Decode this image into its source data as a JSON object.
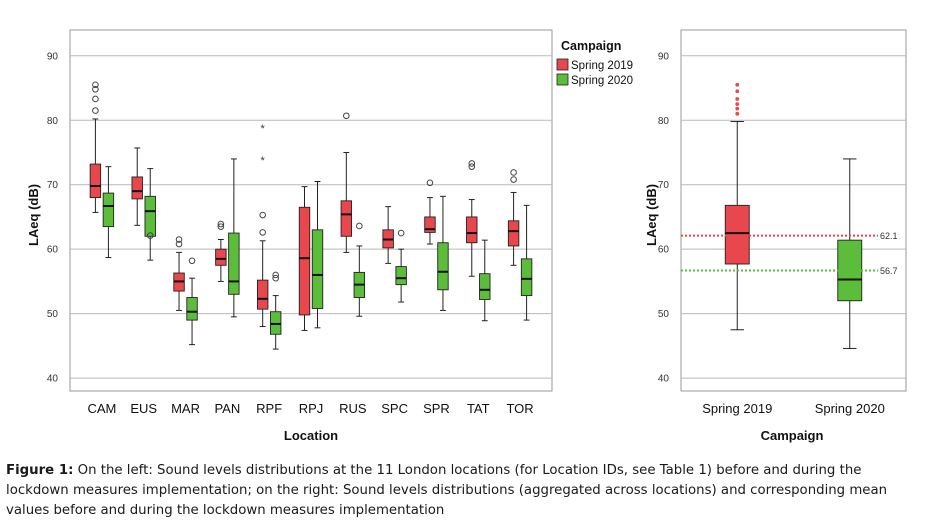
{
  "chart_data": [
    {
      "type": "boxplot",
      "xlabel": "Location",
      "ylabel": "LAeq (dB)",
      "ylim": [
        38,
        94
      ],
      "yticks": [
        40,
        50,
        60,
        70,
        80,
        90
      ],
      "grid": true,
      "legend": {
        "title": "Campaign",
        "position": "top-right"
      },
      "categories": [
        "CAM",
        "EUS",
        "MAR",
        "PAN",
        "RPF",
        "RPJ",
        "RUS",
        "SPC",
        "SPR",
        "TAT",
        "TOR"
      ],
      "series": [
        {
          "name": "Spring 2019",
          "color": "#e8474e",
          "boxes": [
            {
              "category": "CAM",
              "whisker_low": 65.7,
              "q1": 68.0,
              "median": 69.8,
              "q3": 73.2,
              "whisker_high": 80.2,
              "outliers": [
                81.5,
                83.3,
                84.8,
                85.5
              ],
              "extremes": []
            },
            {
              "category": "EUS",
              "whisker_low": 63.7,
              "q1": 67.8,
              "median": 69.0,
              "q3": 71.2,
              "whisker_high": 75.7,
              "outliers": [],
              "extremes": []
            },
            {
              "category": "MAR",
              "whisker_low": 50.5,
              "q1": 53.5,
              "median": 55.0,
              "q3": 56.3,
              "whisker_high": 59.5,
              "outliers": [
                60.8,
                61.5
              ],
              "extremes": []
            },
            {
              "category": "PAN",
              "whisker_low": 55.0,
              "q1": 57.5,
              "median": 58.5,
              "q3": 60.0,
              "whisker_high": 61.5,
              "outliers": [
                63.5,
                63.9
              ],
              "extremes": []
            },
            {
              "category": "RPF",
              "whisker_low": 48.0,
              "q1": 50.7,
              "median": 52.3,
              "q3": 55.2,
              "whisker_high": 61.3,
              "outliers": [
                62.6,
                65.3
              ],
              "extremes": [
                73.8,
                78.8
              ]
            },
            {
              "category": "RPJ",
              "whisker_low": 47.4,
              "q1": 49.8,
              "median": 58.6,
              "q3": 66.5,
              "whisker_high": 69.7,
              "outliers": [],
              "extremes": []
            },
            {
              "category": "RUS",
              "whisker_low": 59.5,
              "q1": 62.0,
              "median": 65.4,
              "q3": 67.5,
              "whisker_high": 75.0,
              "outliers": [
                80.7
              ],
              "extremes": []
            },
            {
              "category": "SPC",
              "whisker_low": 57.8,
              "q1": 60.2,
              "median": 61.5,
              "q3": 63.0,
              "whisker_high": 66.6,
              "outliers": [],
              "extremes": []
            },
            {
              "category": "SPR",
              "whisker_low": 60.8,
              "q1": 62.6,
              "median": 63.1,
              "q3": 65.0,
              "whisker_high": 68.0,
              "outliers": [
                70.3
              ],
              "extremes": []
            },
            {
              "category": "TAT",
              "whisker_low": 55.8,
              "q1": 61.0,
              "median": 62.5,
              "q3": 65.0,
              "whisker_high": 67.7,
              "outliers": [
                72.8,
                73.3
              ],
              "extremes": []
            },
            {
              "category": "TOR",
              "whisker_low": 57.5,
              "q1": 60.5,
              "median": 62.8,
              "q3": 64.4,
              "whisker_high": 68.8,
              "outliers": [
                70.8,
                71.9
              ],
              "extremes": []
            }
          ]
        },
        {
          "name": "Spring 2020",
          "color": "#5cbd3b",
          "boxes": [
            {
              "category": "CAM",
              "whisker_low": 58.7,
              "q1": 63.5,
              "median": 66.7,
              "q3": 68.7,
              "whisker_high": 72.8,
              "outliers": [],
              "extremes": []
            },
            {
              "category": "EUS",
              "whisker_low": 58.3,
              "q1": 62.0,
              "median": 65.9,
              "q3": 68.2,
              "whisker_high": 72.5,
              "outliers": [
                62.1
              ],
              "extremes": []
            },
            {
              "category": "MAR",
              "whisker_low": 45.2,
              "q1": 49.0,
              "median": 50.3,
              "q3": 52.5,
              "whisker_high": 55.5,
              "outliers": [
                58.2
              ],
              "extremes": []
            },
            {
              "category": "PAN",
              "whisker_low": 49.5,
              "q1": 53.0,
              "median": 55.0,
              "q3": 62.5,
              "whisker_high": 74.0,
              "outliers": [],
              "extremes": []
            },
            {
              "category": "RPF",
              "whisker_low": 44.5,
              "q1": 46.8,
              "median": 48.4,
              "q3": 50.3,
              "whisker_high": 52.8,
              "outliers": [
                55.5,
                56.0
              ],
              "extremes": []
            },
            {
              "category": "RPJ",
              "whisker_low": 47.8,
              "q1": 50.8,
              "median": 56.0,
              "q3": 63.0,
              "whisker_high": 70.5,
              "outliers": [],
              "extremes": []
            },
            {
              "category": "RUS",
              "whisker_low": 49.6,
              "q1": 52.5,
              "median": 54.5,
              "q3": 56.4,
              "whisker_high": 60.5,
              "outliers": [
                63.6
              ],
              "extremes": []
            },
            {
              "category": "SPC",
              "whisker_low": 51.8,
              "q1": 54.5,
              "median": 55.5,
              "q3": 57.3,
              "whisker_high": 60.0,
              "outliers": [
                62.5
              ],
              "extremes": []
            },
            {
              "category": "SPR",
              "whisker_low": 50.5,
              "q1": 53.7,
              "median": 56.5,
              "q3": 61.0,
              "whisker_high": 68.2,
              "outliers": [],
              "extremes": []
            },
            {
              "category": "TAT",
              "whisker_low": 48.9,
              "q1": 52.2,
              "median": 53.7,
              "q3": 56.2,
              "whisker_high": 61.4,
              "outliers": [],
              "extremes": []
            },
            {
              "category": "TOR",
              "whisker_low": 49.0,
              "q1": 52.8,
              "median": 55.4,
              "q3": 58.5,
              "whisker_high": 66.8,
              "outliers": [],
              "extremes": []
            }
          ]
        }
      ]
    },
    {
      "type": "boxplot",
      "xlabel": "Campaign",
      "ylabel": "LAeq (dB)",
      "ylim": [
        38,
        94
      ],
      "yticks": [
        40,
        50,
        60,
        70,
        80,
        90
      ],
      "grid": true,
      "categories": [
        "Spring 2019",
        "Spring 2020"
      ],
      "boxes": [
        {
          "category": "Spring 2019",
          "color": "#e8474e",
          "whisker_low": 47.5,
          "q1": 57.7,
          "median": 62.5,
          "q3": 66.8,
          "whisker_high": 79.8,
          "outliers": [
            81.0,
            81.8,
            82.5,
            83.3,
            84.5,
            85.5
          ]
        },
        {
          "category": "Spring 2020",
          "color": "#5cbd3b",
          "whisker_low": 44.6,
          "q1": 52.0,
          "median": 55.3,
          "q3": 61.4,
          "whisker_high": 74.0,
          "outliers": []
        }
      ],
      "mean_lines": [
        {
          "value": 62.1,
          "label": "62.1",
          "color": "#e8474e"
        },
        {
          "value": 56.7,
          "label": "56.7",
          "color": "#5cbd3b"
        }
      ]
    }
  ],
  "caption": {
    "label": "Figure 1:",
    "text": " On the left: Sound levels distributions at the 11 London locations (for Location IDs, see Table 1) before and during the lockdown measures implementation; on the right: Sound levels distributions (aggregated across locations) and corresponding mean values before and during the lockdown measures implementation"
  }
}
